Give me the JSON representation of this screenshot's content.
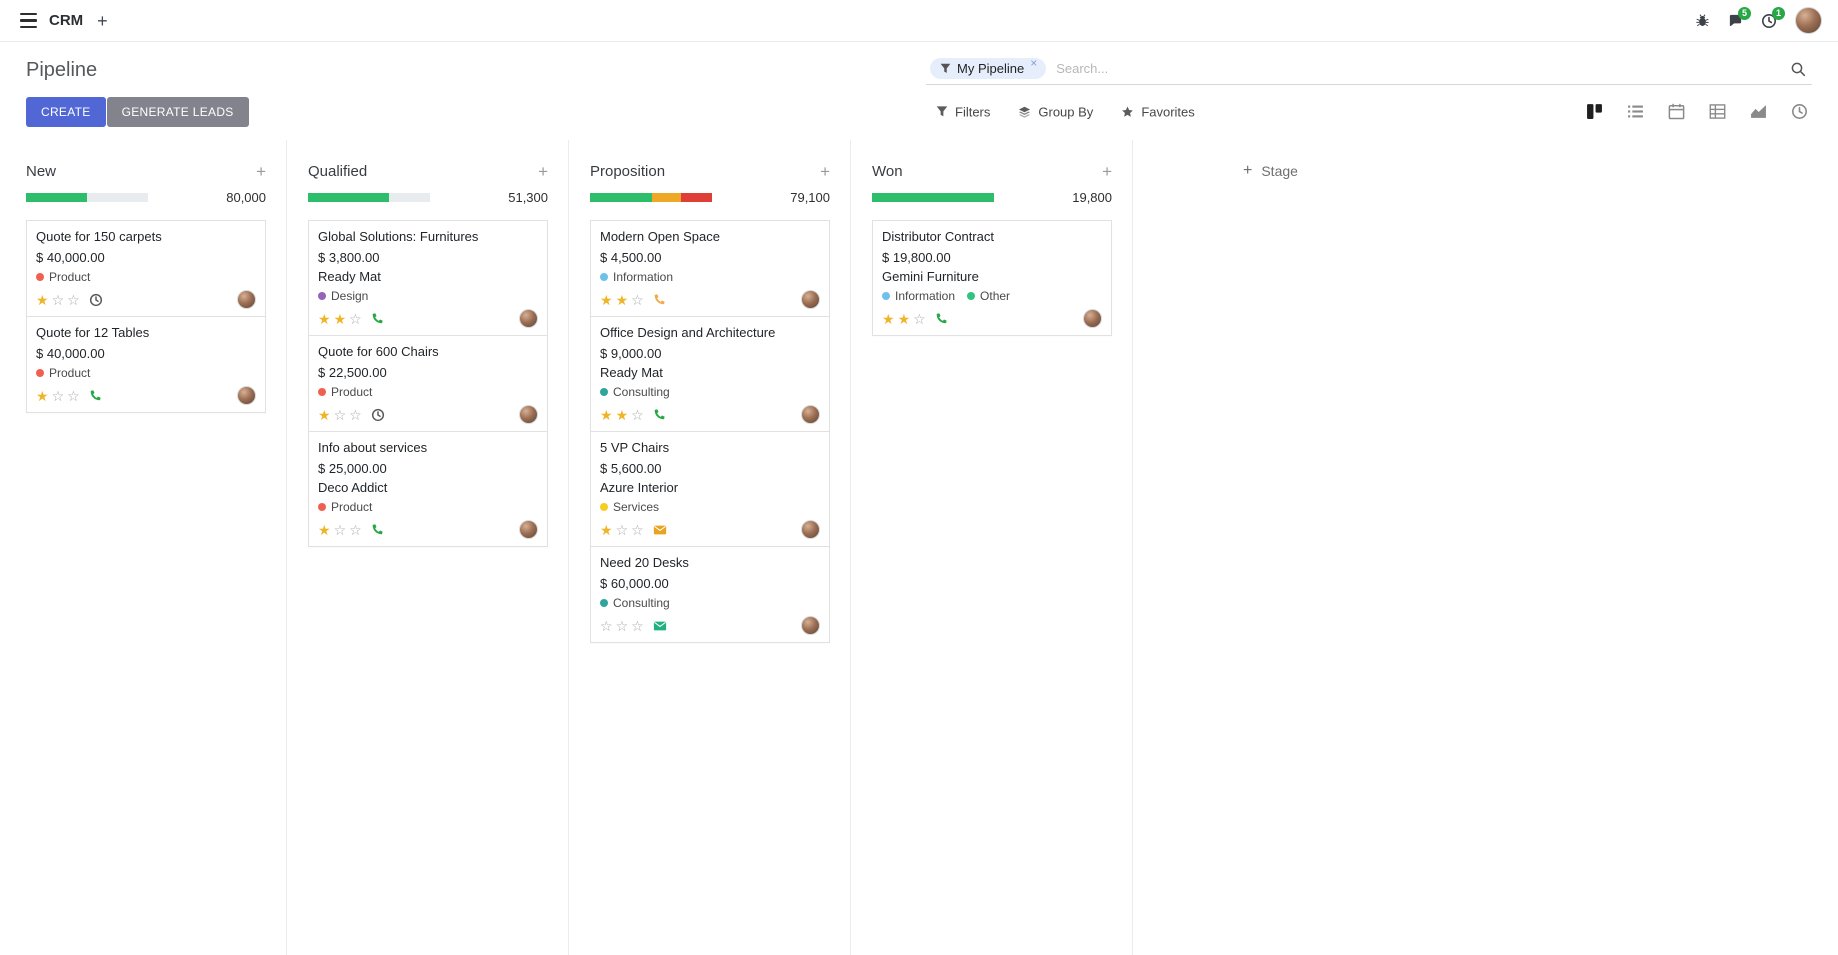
{
  "icons": {
    "plus": "+",
    "close": "×",
    "star_filled": "★",
    "star_empty": "☆"
  },
  "colors": {
    "accent": "#5267d6",
    "secondary_button": "#83838e",
    "progress_green": "#2dbe6c",
    "progress_yellow": "#efa726",
    "progress_red": "#df3e37",
    "star_gold": "#efb528",
    "badge_green": "#28a745"
  },
  "topbar": {
    "app_name": "CRM",
    "messages_count": "5",
    "activities_count": "1"
  },
  "control_panel": {
    "title": "Pipeline",
    "buttons": {
      "create": "CREATE",
      "generate_leads": "GENERATE LEADS"
    },
    "search": {
      "facet_label": "My Pipeline",
      "placeholder": "Search..."
    },
    "menus": {
      "filters": "Filters",
      "group_by": "Group By",
      "favorites": "Favorites"
    }
  },
  "board": {
    "add_stage_label": "Stage",
    "columns": [
      {
        "name": "New",
        "total": "80,000",
        "progress": [
          {
            "color": "#2dbe6c",
            "pct": 50
          }
        ],
        "cards": [
          {
            "title": "Quote for 150 carpets",
            "amount": "$ 40,000.00",
            "partner": "",
            "tags": [
              {
                "label": "Product",
                "color": "#f06050"
              }
            ],
            "stars": 1,
            "activity": {
              "type": "clock",
              "color": "#5a5a5a"
            }
          },
          {
            "title": "Quote for 12 Tables",
            "amount": "$ 40,000.00",
            "partner": "",
            "tags": [
              {
                "label": "Product",
                "color": "#f06050"
              }
            ],
            "stars": 1,
            "activity": {
              "type": "phone",
              "color": "#28a745"
            }
          }
        ]
      },
      {
        "name": "Qualified",
        "total": "51,300",
        "progress": [
          {
            "color": "#2dbe6c",
            "pct": 66
          }
        ],
        "cards": [
          {
            "title": "Global Solutions: Furnitures",
            "amount": "$ 3,800.00",
            "partner": "Ready Mat",
            "tags": [
              {
                "label": "Design",
                "color": "#9365b8"
              }
            ],
            "stars": 2,
            "activity": {
              "type": "phone",
              "color": "#28a745"
            }
          },
          {
            "title": "Quote for 600 Chairs",
            "amount": "$ 22,500.00",
            "partner": "",
            "tags": [
              {
                "label": "Product",
                "color": "#f06050"
              }
            ],
            "stars": 1,
            "activity": {
              "type": "clock",
              "color": "#5a5a5a"
            }
          },
          {
            "title": "Info about services",
            "amount": "$ 25,000.00",
            "partner": "Deco Addict",
            "tags": [
              {
                "label": "Product",
                "color": "#f06050"
              }
            ],
            "stars": 1,
            "activity": {
              "type": "phone",
              "color": "#28a745"
            }
          }
        ]
      },
      {
        "name": "Proposition",
        "total": "79,100",
        "progress": [
          {
            "color": "#2dbe6c",
            "pct": 51
          },
          {
            "color": "#efa726",
            "pct": 24
          },
          {
            "color": "#df3e37",
            "pct": 25
          }
        ],
        "cards": [
          {
            "title": "Modern Open Space",
            "amount": "$ 4,500.00",
            "partner": "",
            "tags": [
              {
                "label": "Information",
                "color": "#6cc1ed"
              }
            ],
            "stars": 2,
            "activity": {
              "type": "phone",
              "color": "#f0ad4e"
            }
          },
          {
            "title": "Office Design and Architecture",
            "amount": "$ 9,000.00",
            "partner": "Ready Mat",
            "tags": [
              {
                "label": "Consulting",
                "color": "#2fa59b"
              }
            ],
            "stars": 2,
            "activity": {
              "type": "phone",
              "color": "#28a745"
            }
          },
          {
            "title": "5 VP Chairs",
            "amount": "$ 5,600.00",
            "partner": "Azure Interior",
            "tags": [
              {
                "label": "Services",
                "color": "#f7cd1f"
              }
            ],
            "stars": 1,
            "activity": {
              "type": "envelope",
              "color": "#eaa221"
            }
          },
          {
            "title": "Need 20 Desks",
            "amount": "$ 60,000.00",
            "partner": "",
            "tags": [
              {
                "label": "Consulting",
                "color": "#2fa59b"
              }
            ],
            "stars": 0,
            "activity": {
              "type": "envelope",
              "color": "#21b082"
            }
          }
        ]
      },
      {
        "name": "Won",
        "total": "19,800",
        "progress": [
          {
            "color": "#2dbe6c",
            "pct": 100
          }
        ],
        "cards": [
          {
            "title": "Distributor Contract",
            "amount": "$ 19,800.00",
            "partner": "Gemini Furniture",
            "tags": [
              {
                "label": "Information",
                "color": "#6cc1ed"
              },
              {
                "label": "Other",
                "color": "#30c381"
              }
            ],
            "stars": 2,
            "activity": {
              "type": "phone",
              "color": "#28a745"
            }
          }
        ]
      }
    ]
  }
}
